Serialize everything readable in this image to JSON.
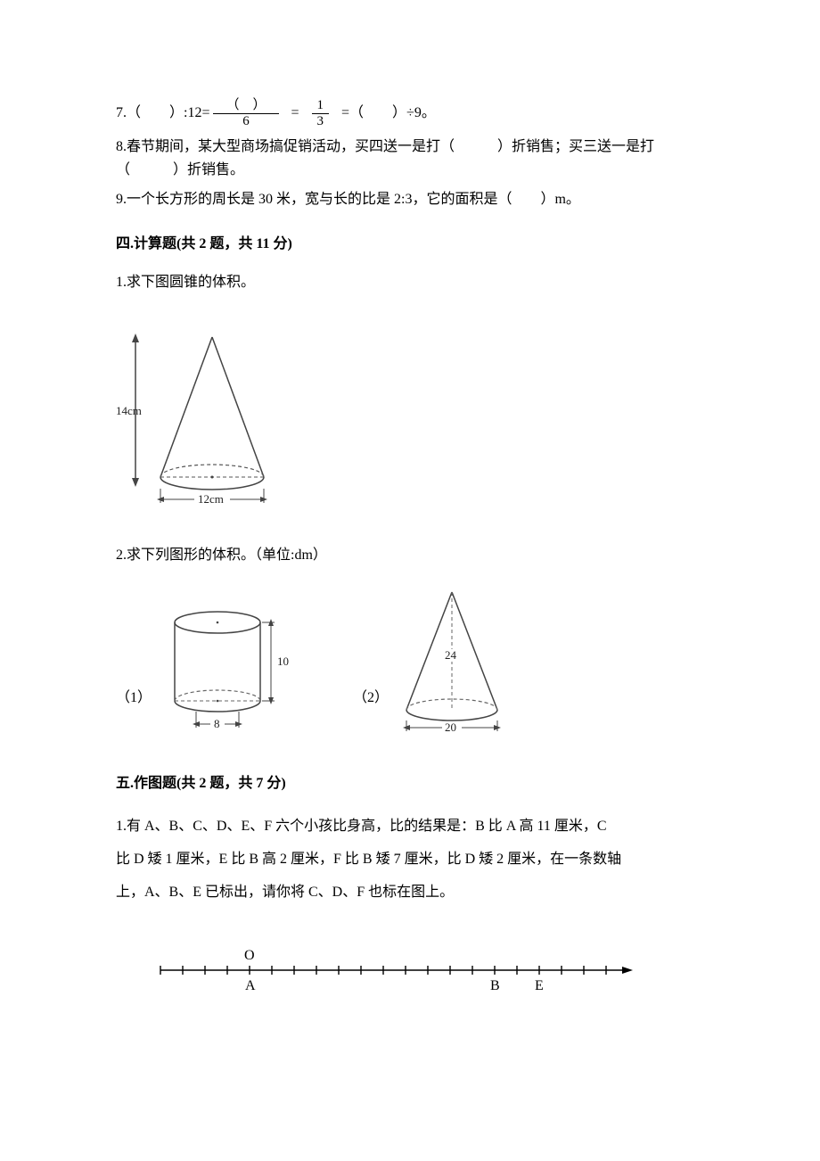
{
  "q7": {
    "prefix": "7.（　　）:12=",
    "frac1_num": "（　）",
    "frac1_den": "6",
    "eq1": "=",
    "frac2_num": "1",
    "frac2_den": "3",
    "suffix": "=（　　）÷9。"
  },
  "q8": {
    "text": "8.春节期间，某大型商场搞促销活动，买四送一是打（　　　）折销售；买三送一是打（　　　）折销售。"
  },
  "q9": {
    "text": "9.一个长方形的周长是 30 米，宽与长的比是 2:3，它的面积是（　　）m。"
  },
  "section4": {
    "title": "四.计算题(共 2 题，共 11 分)",
    "q1": "1.求下图圆锥的体积。",
    "q2": "2.求下列图形的体积。（单位:dm）"
  },
  "cone1": {
    "height_label": "14cm",
    "base_label": "12cm",
    "line_color": "#444444",
    "dash_color": "#555555",
    "text_color": "#222222",
    "font_size": 12
  },
  "cylinder": {
    "height_label": "10",
    "diameter_label": "8",
    "line_color": "#444444",
    "dash_color": "#666666",
    "text_color": "#222222",
    "font_size": 12
  },
  "cone2": {
    "height_label": "24",
    "base_label": "20",
    "line_color": "#444444",
    "dash_color": "#666666",
    "text_color": "#222222",
    "font_size": 12
  },
  "labels": {
    "sub1": "（1）",
    "sub2": "（2）"
  },
  "section5": {
    "title": "五.作图题(共 2 题，共 7 分)",
    "q1_line1": "1.有 A、B、C、D、E、F 六个小孩比身高，比的结果是：B 比 A 高 11 厘米，C",
    "q1_line2": "比 D 矮 1 厘米，E 比 B 高 2 厘米，F 比 B 矮 7 厘米，比 D 矮 2 厘米，在一条数轴",
    "q1_line3": "上，A、B、E 已标出，请你将 C、D、F 也标在图上。"
  },
  "numberline": {
    "O": "O",
    "A": "A",
    "B": "B",
    "E": "E",
    "tick_count": 21,
    "O_index": 4,
    "A_index": 4,
    "B_index": 15,
    "E_index": 17,
    "line_color": "#000000",
    "font_size": 16
  },
  "colors": {
    "text": "#000000",
    "bg": "#ffffff"
  }
}
